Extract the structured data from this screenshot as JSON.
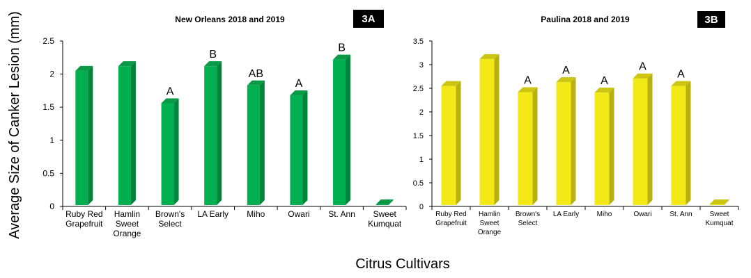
{
  "shared": {
    "ylabel": "Average Size of Canker Lesion (mm)",
    "xlabel": "Citrus Cultivars"
  },
  "chart_data": [
    {
      "type": "bar",
      "panel": "3A",
      "title": "New Orleans 2018 and 2019",
      "categories": [
        "Ruby Red Grapefruit",
        "Hamlin Sweet Orange",
        "Brown's Select",
        "LA Early",
        "Miho",
        "Owari",
        "St. Ann",
        "Sweet Kumquat"
      ],
      "category_lines": [
        [
          "Ruby Red",
          "Grapefruit"
        ],
        [
          "Hamlin",
          "Sweet",
          "Orange"
        ],
        [
          "Brown's",
          "Select"
        ],
        [
          "LA Early"
        ],
        [
          "Miho"
        ],
        [
          "Owari"
        ],
        [
          "St. Ann"
        ],
        [
          "Sweet",
          "Kumquat"
        ]
      ],
      "values": [
        2.05,
        2.12,
        1.56,
        2.12,
        1.83,
        1.68,
        2.22,
        0.0
      ],
      "letters": [
        "",
        "",
        "A",
        "B",
        "AB",
        "A",
        "B",
        ""
      ],
      "ylim": [
        0,
        2.5
      ],
      "yticks": [
        "0",
        "0.5",
        "1",
        "1.5",
        "2",
        "2.5"
      ],
      "bar_color": "#00b050",
      "side_color": "#00843a",
      "top_color": "#0a9a46"
    },
    {
      "type": "bar",
      "panel": "3B",
      "title": "Paulina 2018 and 2019",
      "categories": [
        "Ruby Red Grapefruit",
        "Hamlin Sweet Orange",
        "Brown's Select",
        "LA Early",
        "Miho",
        "Owari",
        "St. Ann",
        "Sweet Kumquat"
      ],
      "category_lines": [
        [
          "Ruby Red",
          "Grapefruit"
        ],
        [
          "Hamlin",
          "Sweet",
          "Orange"
        ],
        [
          "Brown's",
          "Select"
        ],
        [
          "LA Early"
        ],
        [
          "Miho"
        ],
        [
          "Owari"
        ],
        [
          "St. Ann"
        ],
        [
          "Sweet",
          "Kumquat"
        ]
      ],
      "values": [
        2.55,
        3.12,
        2.42,
        2.63,
        2.41,
        2.71,
        2.55,
        0.0
      ],
      "letters": [
        "",
        "",
        "A",
        "A",
        "A",
        "A",
        "A",
        ""
      ],
      "ylim": [
        0,
        3.5
      ],
      "yticks": [
        "0",
        "0.5",
        "1",
        "1.5",
        "2",
        "2.5",
        "3",
        "3.5"
      ],
      "bar_color": "#f2e916",
      "side_color": "#b9b111",
      "top_color": "#cdc513"
    }
  ]
}
